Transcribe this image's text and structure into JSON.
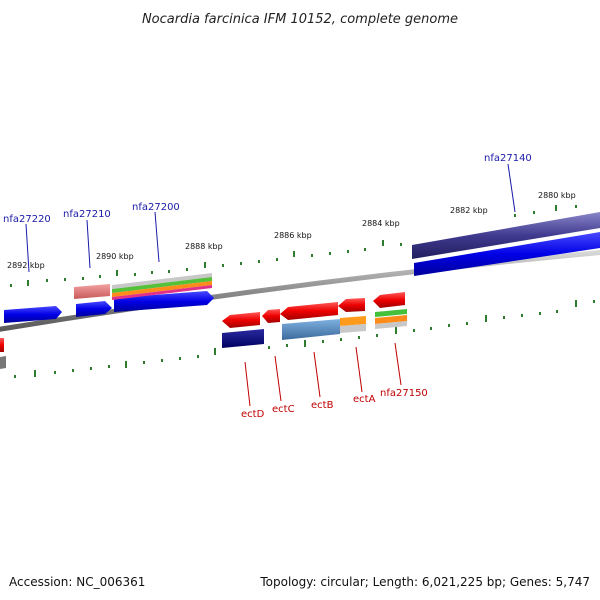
{
  "title": "Nocardia farcinica IFM 10152, complete genome",
  "ruler_labels": [
    "2892 kbp",
    "2890 kbp",
    "2888 kbp",
    "2886 kbp",
    "2884 kbp",
    "2882 kbp",
    "2880 kbp"
  ],
  "top_genes": [
    "nfa27220",
    "nfa27210",
    "nfa27200",
    "nfa27140"
  ],
  "bottom_genes": [
    "ectD",
    "ectC",
    "ectB",
    "ectA",
    "nfa27150"
  ],
  "footer": {
    "accession": "Accession: NC_006361",
    "stats": "Topology: circular; Length: 6,021,225 bp; Genes: 5,747"
  },
  "colors": {
    "top_label": "#1a1aa8",
    "bottom_label": "#c00000",
    "tick": "#2e7d2e",
    "backbone": "#8a8a8a",
    "forward_gene": "#1010e0",
    "reverse_gene": "#e00000"
  }
}
